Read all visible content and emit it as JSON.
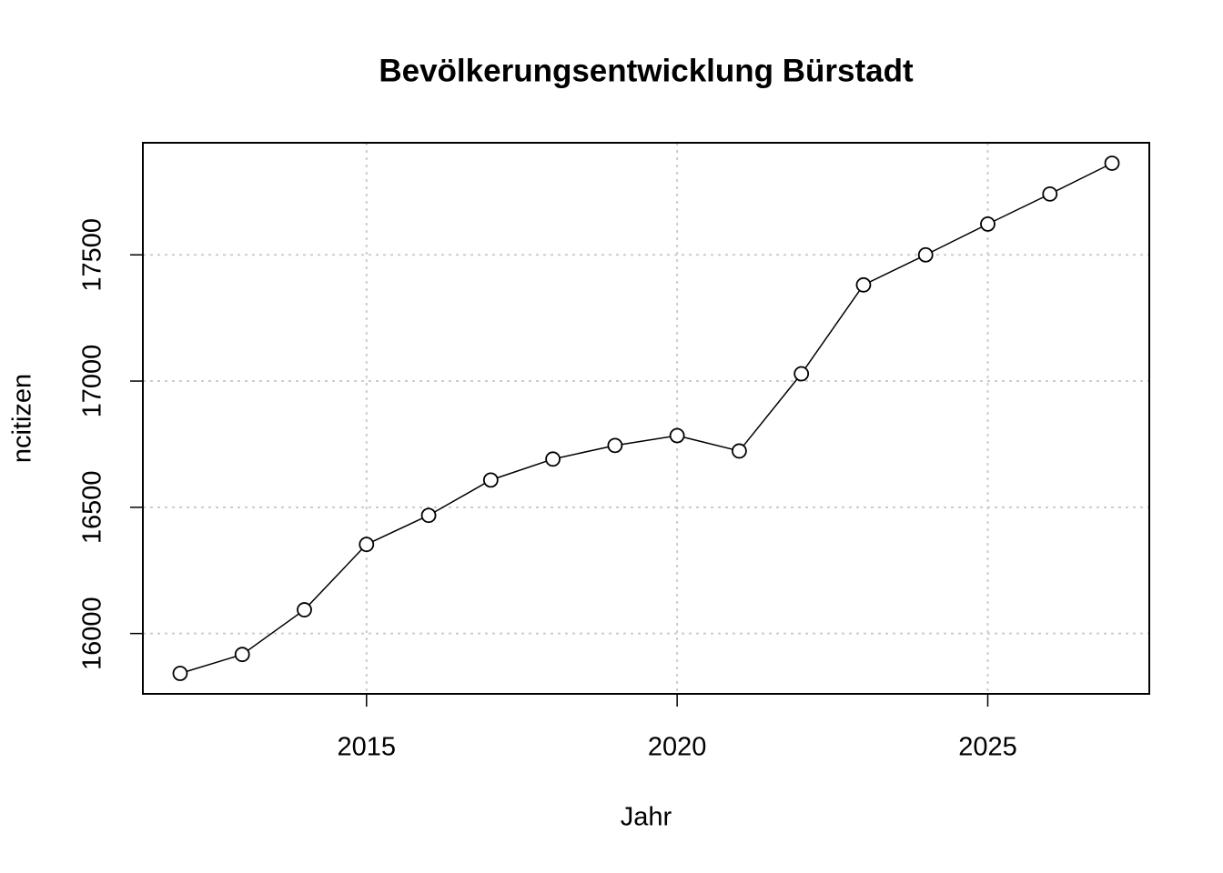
{
  "chart_data": {
    "type": "line",
    "title": "Bevölkerungsentwicklung Bürstadt",
    "x_label": "Jahr",
    "y_label": "ncitizen",
    "x": [
      2012,
      2013,
      2014,
      2015,
      2016,
      2017,
      2018,
      2019,
      2020,
      2021,
      2022,
      2023,
      2024,
      2025,
      2026,
      2027
    ],
    "series": [
      {
        "name": "ncitizen",
        "color": "#000000",
        "values": [
          15842,
          15917,
          16094,
          16353,
          16468,
          16608,
          16691,
          16745,
          16784,
          16723,
          17029,
          17381,
          17500,
          17622,
          17741,
          17863
        ]
      }
    ],
    "xlim": [
      2011.4,
      2027.6
    ],
    "xticks": [
      2015,
      2020,
      2025
    ],
    "ylim": [
      15761,
      17944
    ],
    "yticks": [
      16000,
      16500,
      17000,
      17500
    ],
    "grid": true
  }
}
